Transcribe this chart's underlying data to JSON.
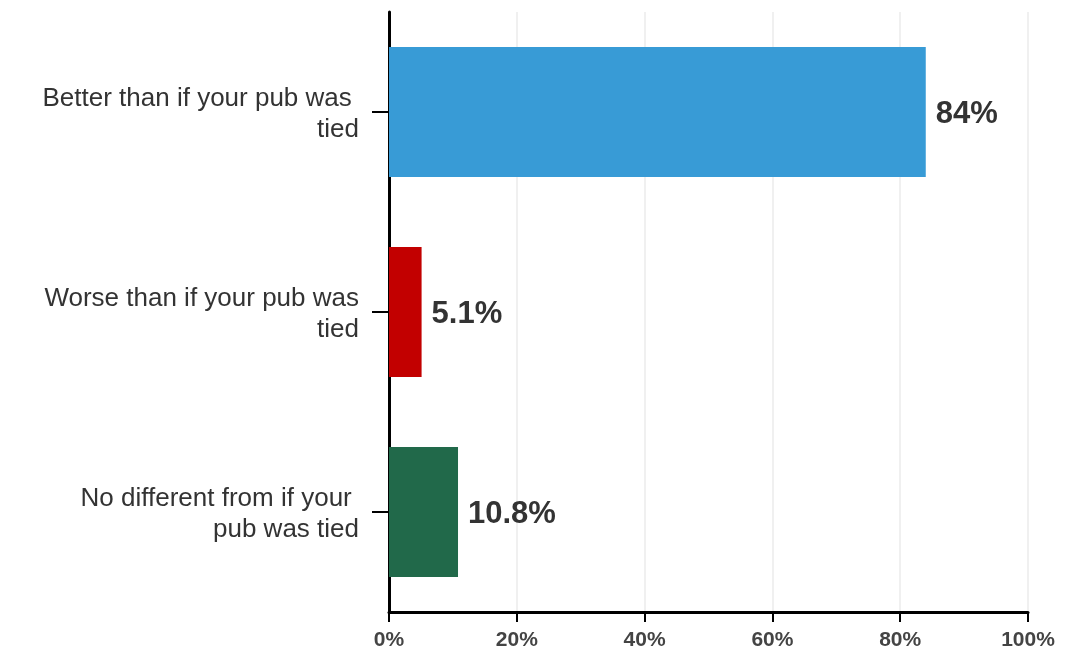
{
  "chart_data": {
    "type": "bar",
    "orientation": "horizontal",
    "categories": [
      "Better than if your pub was tied",
      "Worse than if your pub was tied",
      "No different from if your pub was tied"
    ],
    "values": [
      84,
      5.1,
      10.8
    ],
    "colors": [
      "#389bd6",
      "#c20000",
      "#21694a"
    ],
    "value_labels": [
      "84%",
      "5.1%",
      "10.8%"
    ],
    "xlim": [
      0,
      100
    ],
    "xticks": [
      {
        "value": 0,
        "label": "0%"
      },
      {
        "value": 20,
        "label": "20%"
      },
      {
        "value": 40,
        "label": "40%"
      },
      {
        "value": 60,
        "label": "60%"
      },
      {
        "value": 80,
        "label": "80%"
      },
      {
        "value": 100,
        "label": "100%"
      }
    ],
    "grid": "x"
  }
}
